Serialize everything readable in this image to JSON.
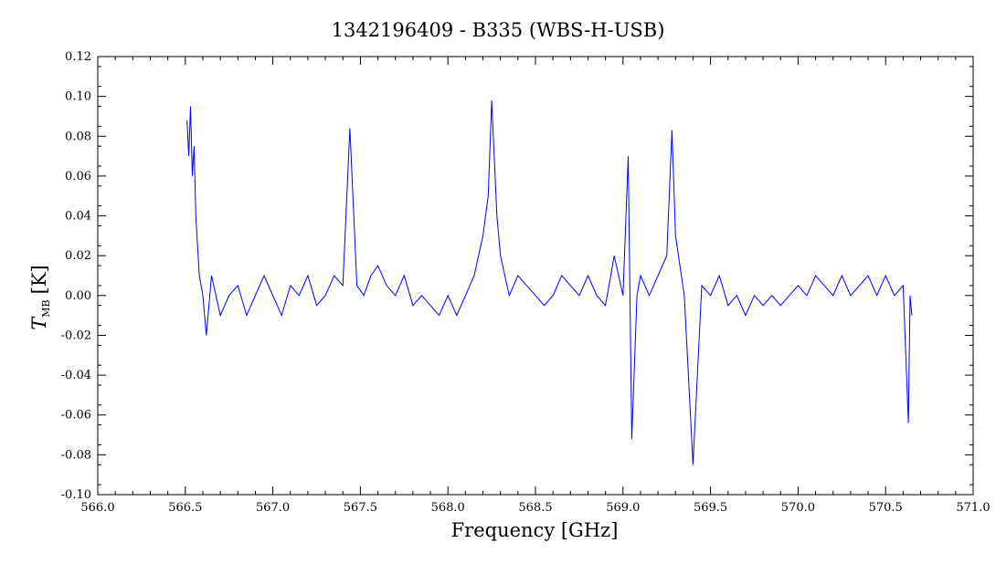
{
  "chart_data": {
    "type": "line",
    "title": "1342196409 - B335 (WBS-H-USB)",
    "xlabel": "Frequency [GHz]",
    "ylabel": {
      "symbol": "T",
      "subscript": "MB",
      "unit": "[K]"
    },
    "xlim": [
      566.0,
      571.0
    ],
    "ylim": [
      -0.1,
      0.12
    ],
    "x_ticks": [
      "566.0",
      "566.5",
      "567.0",
      "567.5",
      "568.0",
      "568.5",
      "569.0",
      "569.5",
      "570.0",
      "570.5",
      "571.0"
    ],
    "y_ticks": [
      "-0.10",
      "-0.08",
      "-0.06",
      "-0.04",
      "-0.02",
      "0.00",
      "0.02",
      "0.04",
      "0.06",
      "0.08",
      "0.10",
      "0.12"
    ],
    "grid": false,
    "colors": {
      "series": "#0000ff",
      "axes": "#000000"
    },
    "series": [
      {
        "x": [
          566.51,
          566.52,
          566.53,
          566.54,
          566.55,
          566.56,
          566.58,
          566.6,
          566.62,
          566.65,
          566.7,
          566.75,
          566.8,
          566.85,
          566.9,
          566.95,
          567.0,
          567.05,
          567.1,
          567.15,
          567.2,
          567.25,
          567.3,
          567.35,
          567.4,
          567.44,
          567.48,
          567.52,
          567.56,
          567.6,
          567.65,
          567.7,
          567.75,
          567.8,
          567.85,
          567.9,
          567.95,
          568.0,
          568.05,
          568.1,
          568.15,
          568.2,
          568.23,
          568.25,
          568.28,
          568.3,
          568.35,
          568.4,
          568.45,
          568.5,
          568.55,
          568.6,
          568.65,
          568.7,
          568.75,
          568.8,
          568.85,
          568.9,
          568.95,
          569.0,
          569.03,
          569.05,
          569.08,
          569.1,
          569.15,
          569.2,
          569.25,
          569.28,
          569.3,
          569.35,
          569.4,
          569.45,
          569.5,
          569.55,
          569.6,
          569.65,
          569.7,
          569.75,
          569.8,
          569.85,
          569.9,
          569.95,
          570.0,
          570.05,
          570.1,
          570.15,
          570.2,
          570.25,
          570.3,
          570.35,
          570.4,
          570.45,
          570.5,
          570.55,
          570.6,
          570.63,
          570.64,
          570.65
        ],
        "y": [
          0.088,
          0.07,
          0.095,
          0.06,
          0.075,
          0.04,
          0.01,
          0.0,
          -0.02,
          0.01,
          -0.01,
          0.0,
          0.005,
          -0.01,
          0.0,
          0.01,
          0.0,
          -0.01,
          0.005,
          0.0,
          0.01,
          -0.005,
          0.0,
          0.01,
          0.005,
          0.084,
          0.005,
          0.0,
          0.01,
          0.015,
          0.005,
          0.0,
          0.01,
          -0.005,
          0.0,
          -0.005,
          -0.01,
          0.0,
          -0.01,
          0.0,
          0.01,
          0.03,
          0.05,
          0.098,
          0.04,
          0.02,
          0.0,
          0.01,
          0.005,
          0.0,
          -0.005,
          0.0,
          0.01,
          0.005,
          0.0,
          0.01,
          0.0,
          -0.005,
          0.02,
          0.0,
          0.07,
          -0.072,
          0.0,
          0.01,
          0.0,
          0.01,
          0.02,
          0.083,
          0.03,
          0.0,
          -0.085,
          0.005,
          0.0,
          0.01,
          -0.005,
          0.0,
          -0.01,
          0.0,
          -0.005,
          0.0,
          -0.005,
          0.0,
          0.005,
          0.0,
          0.01,
          0.005,
          0.0,
          0.01,
          0.0,
          0.005,
          0.01,
          0.0,
          0.01,
          0.0,
          0.005,
          -0.064,
          0.0,
          -0.01
        ]
      }
    ]
  }
}
